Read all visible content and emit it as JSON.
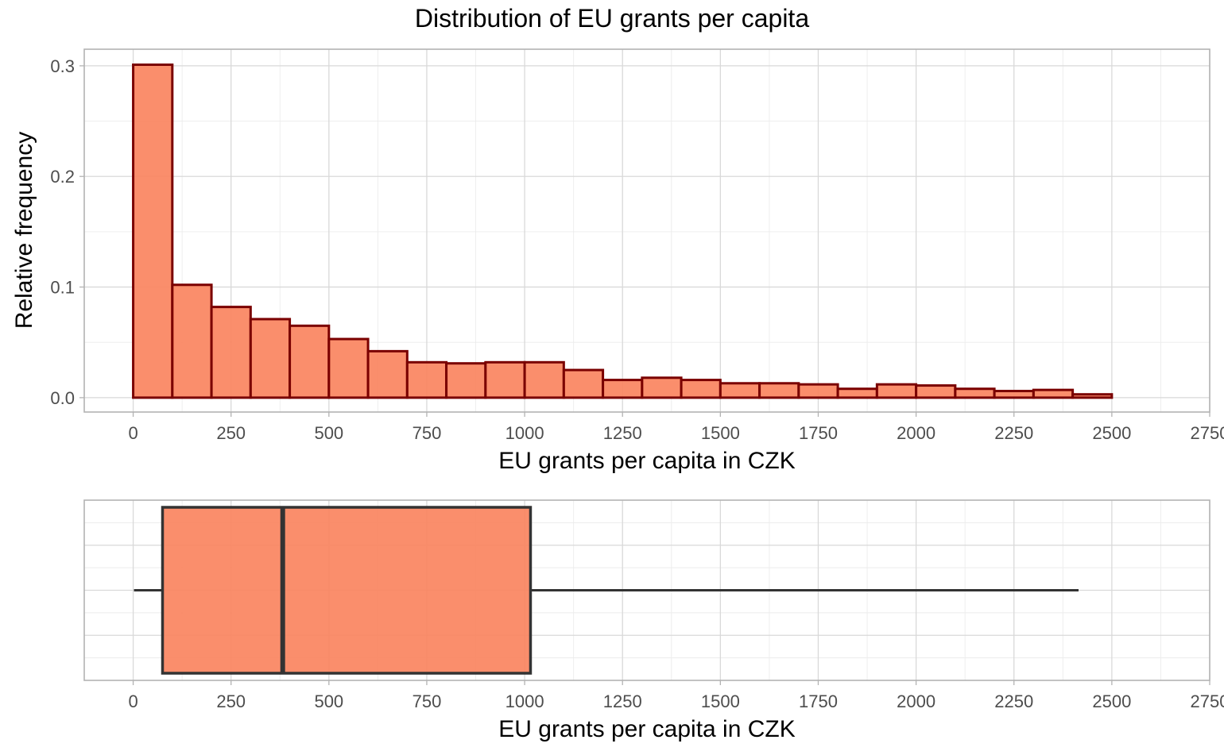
{
  "chart_data": [
    {
      "type": "bar",
      "subtype": "histogram",
      "title": "Distribution of EU grants per capita",
      "xlabel": "EU grants per capita in CZK",
      "ylabel": "Relative frequency",
      "xlim": [
        -125,
        2750
      ],
      "ylim": [
        -0.013,
        0.315
      ],
      "x_ticks": [
        0,
        250,
        500,
        750,
        1000,
        1250,
        1500,
        1750,
        2000,
        2250,
        2500,
        2750
      ],
      "x_tick_labels": [
        "0",
        "250",
        "500",
        "750",
        "1000",
        "1250",
        "1500",
        "1750",
        "2000",
        "2250",
        "2500",
        "2750"
      ],
      "y_ticks": [
        0.0,
        0.1,
        0.2,
        0.3
      ],
      "y_tick_labels": [
        "0.0",
        "0.1",
        "0.2",
        "0.3"
      ],
      "bin_width": 100,
      "bin_starts": [
        0,
        100,
        200,
        300,
        400,
        500,
        600,
        700,
        800,
        900,
        1000,
        1100,
        1200,
        1300,
        1400,
        1500,
        1600,
        1700,
        1800,
        1900,
        2000,
        2100,
        2200,
        2300,
        2400
      ],
      "values": [
        0.301,
        0.102,
        0.082,
        0.071,
        0.065,
        0.053,
        0.042,
        0.032,
        0.031,
        0.032,
        0.032,
        0.025,
        0.016,
        0.018,
        0.016,
        0.013,
        0.013,
        0.012,
        0.008,
        0.012,
        0.011,
        0.008,
        0.006,
        0.007,
        0.003
      ],
      "grid": true,
      "colors": {
        "fill": "#fa8460",
        "outline": "#7a0000"
      }
    },
    {
      "type": "boxplot",
      "xlabel": "EU grants per capita in CZK",
      "xlim": [
        -125,
        2750
      ],
      "x_ticks": [
        0,
        250,
        500,
        750,
        1000,
        1250,
        1500,
        1750,
        2000,
        2250,
        2500,
        2750
      ],
      "x_tick_labels": [
        "0",
        "250",
        "500",
        "750",
        "1000",
        "1250",
        "1500",
        "1750",
        "2000",
        "2250",
        "2500",
        "2750"
      ],
      "whisker_low": 2,
      "q1": 75,
      "median": 382,
      "q3": 1015,
      "whisker_high": 2415,
      "grid": true,
      "colors": {
        "fill": "#fa8460",
        "outline": "#333333"
      }
    }
  ]
}
